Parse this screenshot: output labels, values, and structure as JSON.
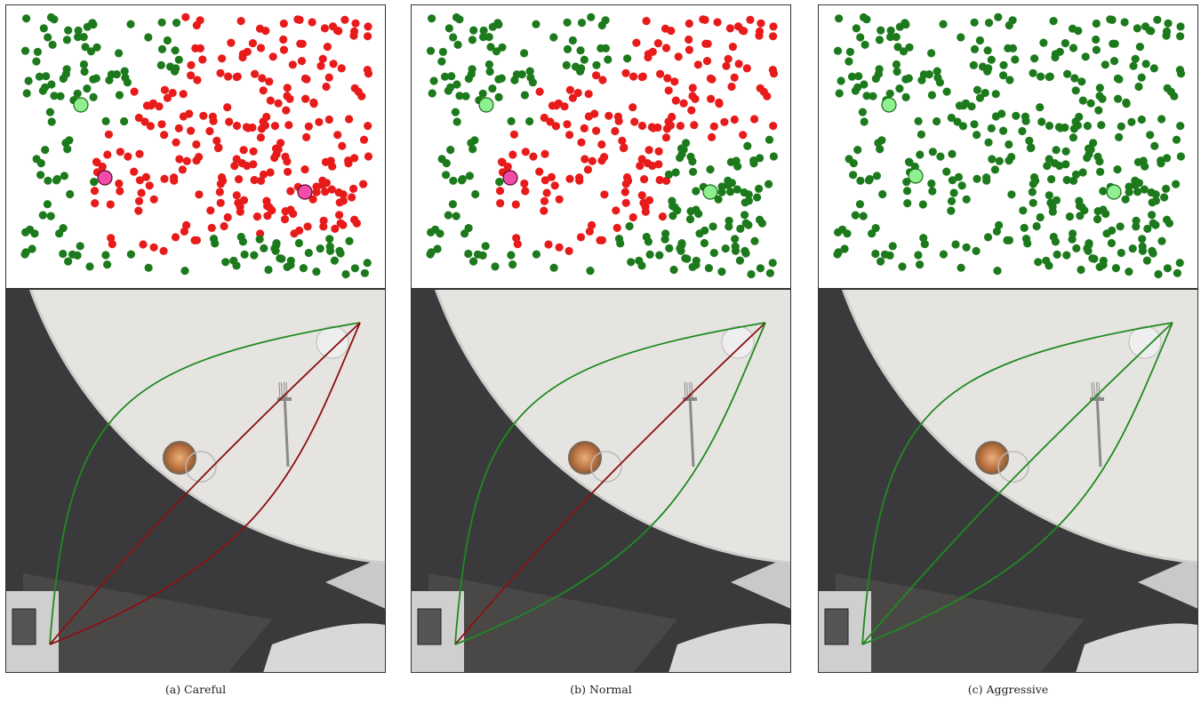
{
  "figure": {
    "panels": [
      {
        "id": "a",
        "caption": "(a)  Careful",
        "mode": "careful"
      },
      {
        "id": "b",
        "caption": "(b)  Normal",
        "mode": "normal"
      },
      {
        "id": "c",
        "caption": "(c)  Aggressive",
        "mode": "aggressive"
      }
    ],
    "colors": {
      "safe_point": "#1c7a1c",
      "unsafe_point": "#e81b1b",
      "safe_query": "#8ef08e",
      "unsafe_query": "#f04ca8",
      "safe_path": "#1f8a1f",
      "unsafe_path": "#8b1010",
      "table": "#e6e4e1",
      "floor": "#3a3a3c",
      "tray": "#4a4847"
    }
  }
}
